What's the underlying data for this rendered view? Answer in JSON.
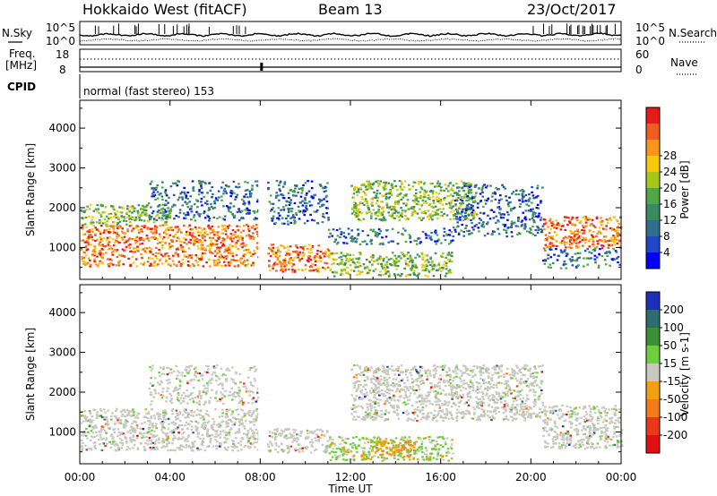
{
  "header": {
    "radar_title": "Hokkaido West (fitACF)",
    "beam_label": "Beam 13",
    "date_label": "23/Oct/2017"
  },
  "top_panels": {
    "noise": {
      "left_label": "N.Sky",
      "left_ticks": [
        "10^5",
        "10^0"
      ],
      "right_ticks": [
        "10^5",
        "10^0"
      ],
      "right_label": "N.Search"
    },
    "freq": {
      "left_label_line1": "Freq.",
      "left_label_line2": "[MHz]",
      "left_ticks": [
        "18",
        "8"
      ],
      "right_ticks": [
        "60",
        "0"
      ],
      "right_label": "Nave"
    },
    "cpid": {
      "label": "CPID",
      "text": "normal (fast stereo) 153"
    }
  },
  "chart_data": [
    {
      "type": "heatmap",
      "name": "power-panel",
      "ylabel": "Slant Range [km]",
      "y_ticks": [
        "1000",
        "2000",
        "3000",
        "4000"
      ],
      "y_tick_values": [
        1000,
        2000,
        3000,
        4000
      ],
      "ylim": [
        200,
        4700
      ],
      "xlim_hours": [
        0,
        24
      ],
      "grid": false,
      "colorbar": {
        "label": "Power [dB]",
        "ticks": [
          "4",
          "8",
          "12",
          "16",
          "20",
          "24",
          "28"
        ],
        "colors": [
          "#0000ff",
          "#1f47c8",
          "#2f6e8c",
          "#3a8a64",
          "#4ea844",
          "#a8c61a",
          "#f5c90e",
          "#f7961a",
          "#f15d1f",
          "#e61a1a"
        ]
      },
      "bands": [
        {
          "from_h": 0.0,
          "to_h": 7.9,
          "min_km": 550,
          "max_km": 1600,
          "level": "high"
        },
        {
          "from_h": 0.0,
          "to_h": 4.0,
          "min_km": 1600,
          "max_km": 2100,
          "level": "mid"
        },
        {
          "from_h": 3.0,
          "to_h": 7.9,
          "min_km": 1700,
          "max_km": 2700,
          "level": "low"
        },
        {
          "from_h": 8.3,
          "to_h": 11.0,
          "min_km": 400,
          "max_km": 1100,
          "level": "high"
        },
        {
          "from_h": 8.3,
          "to_h": 11.0,
          "min_km": 1600,
          "max_km": 2700,
          "level": "low"
        },
        {
          "from_h": 11.0,
          "to_h": 16.5,
          "min_km": 300,
          "max_km": 900,
          "level": "mid"
        },
        {
          "from_h": 11.0,
          "to_h": 16.5,
          "min_km": 1100,
          "max_km": 1500,
          "level": "low"
        },
        {
          "from_h": 12.0,
          "to_h": 17.5,
          "min_km": 1700,
          "max_km": 2700,
          "level": "mid"
        },
        {
          "from_h": 16.5,
          "to_h": 20.5,
          "min_km": 1300,
          "max_km": 2600,
          "level": "low"
        },
        {
          "from_h": 20.5,
          "to_h": 24.0,
          "min_km": 1000,
          "max_km": 1800,
          "level": "high"
        },
        {
          "from_h": 20.5,
          "to_h": 24.0,
          "min_km": 500,
          "max_km": 1000,
          "level": "low"
        }
      ]
    },
    {
      "type": "heatmap",
      "name": "velocity-panel",
      "ylabel": "Slant Range [km]",
      "y_ticks": [
        "1000",
        "2000",
        "3000",
        "4000"
      ],
      "y_tick_values": [
        1000,
        2000,
        3000,
        4000
      ],
      "ylim": [
        200,
        4700
      ],
      "xlim_hours": [
        0,
        24
      ],
      "grid": false,
      "colorbar": {
        "label": "Velocity [m s-1]",
        "ticks": [
          "200",
          "100",
          "50",
          "15",
          "-15",
          "-50",
          "-100",
          "-200"
        ],
        "colors": [
          "#1b2fb8",
          "#2e6c74",
          "#3e8f3a",
          "#6fcf3a",
          "#c8c8c0",
          "#f0a010",
          "#f47a1a",
          "#e83a1a",
          "#e01010"
        ]
      },
      "bands": [
        {
          "from_h": 0.0,
          "to_h": 7.9,
          "min_km": 550,
          "max_km": 1600,
          "level": "grey"
        },
        {
          "from_h": 3.0,
          "to_h": 7.9,
          "min_km": 1700,
          "max_km": 2700,
          "level": "grey-sparse"
        },
        {
          "from_h": 8.3,
          "to_h": 11.0,
          "min_km": 500,
          "max_km": 1100,
          "level": "grey"
        },
        {
          "from_h": 11.0,
          "to_h": 16.5,
          "min_km": 300,
          "max_km": 900,
          "level": "green-orange"
        },
        {
          "from_h": 13.0,
          "to_h": 14.8,
          "min_km": 400,
          "max_km": 800,
          "level": "orange"
        },
        {
          "from_h": 12.0,
          "to_h": 20.5,
          "min_km": 1300,
          "max_km": 2700,
          "level": "grey"
        },
        {
          "from_h": 20.5,
          "to_h": 24.0,
          "min_km": 600,
          "max_km": 1700,
          "level": "grey"
        }
      ]
    }
  ],
  "x_axis": {
    "ticks": [
      "00:00",
      "04:00",
      "08:00",
      "12:00",
      "16:00",
      "20:00",
      "00:00"
    ],
    "tick_hours": [
      0,
      4,
      8,
      12,
      16,
      20,
      24
    ],
    "label": "Time UT"
  }
}
